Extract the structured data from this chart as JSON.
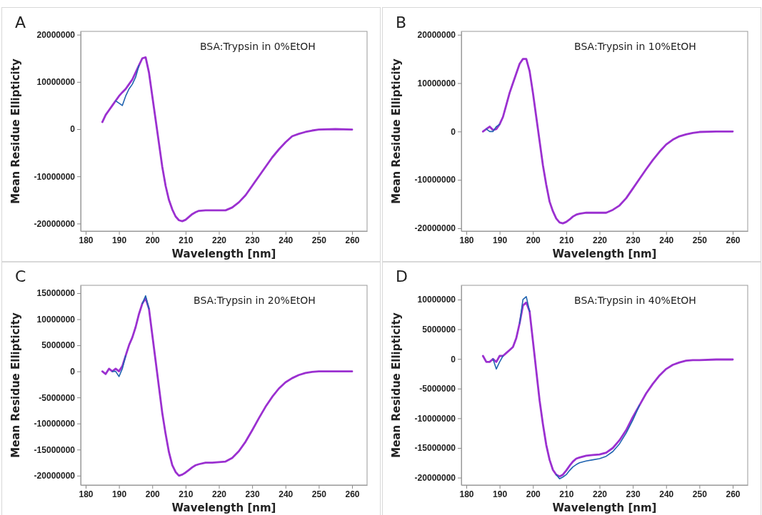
{
  "chart_data": [
    {
      "type": "line",
      "title": "A",
      "annotations": [
        "BSA:Trypsin in 0%EtOH"
      ],
      "xlabel": "Wavelength [nm]",
      "ylabel": "Mean Residue Ellipticity",
      "xlim": [
        178.5,
        264.5
      ],
      "xticks": [
        180,
        190,
        200,
        210,
        220,
        230,
        240,
        250,
        260
      ],
      "ylim": [
        -21600000,
        20700000
      ],
      "yticks": [
        -20000000,
        -10000000,
        0,
        10000000,
        20000000
      ],
      "line_style": "solid",
      "x": [
        185,
        186,
        187,
        188,
        189,
        190,
        191,
        192,
        193,
        194,
        195,
        196,
        197,
        198,
        199,
        200,
        201,
        202,
        203,
        204,
        205,
        206,
        207,
        208,
        209,
        210,
        211,
        212,
        213,
        214,
        216,
        218,
        220,
        222,
        224,
        226,
        228,
        230,
        232,
        234,
        236,
        238,
        240,
        242,
        244,
        246,
        248,
        250,
        255,
        260
      ],
      "series": [
        {
          "color": "#9b30d0",
          "values": [
            1500000,
            3000000,
            4000000,
            5000000,
            6000000,
            7000000,
            7800000,
            8500000,
            9500000,
            10500000,
            12000000,
            13500000,
            15000000,
            15200000,
            12000000,
            7000000,
            2000000,
            -3000000,
            -8000000,
            -12000000,
            -15000000,
            -17000000,
            -18500000,
            -19300000,
            -19500000,
            -19200000,
            -18600000,
            -18000000,
            -17600000,
            -17300000,
            -17200000,
            -17200000,
            -17200000,
            -17200000,
            -16600000,
            -15500000,
            -14000000,
            -12000000,
            -10000000,
            -8000000,
            -6000000,
            -4300000,
            -2800000,
            -1500000,
            -1000000,
            -600000,
            -300000,
            -100000,
            0,
            -100000
          ]
        },
        {
          "color": "#1f63b0",
          "values": [
            null,
            null,
            null,
            null,
            6000000,
            5500000,
            5000000,
            7000000,
            8500000,
            9500000,
            11000000,
            13500000,
            null,
            null,
            null,
            null,
            null,
            null,
            null,
            null,
            null,
            null,
            null,
            null,
            null,
            null,
            null,
            null,
            null,
            null,
            null,
            null,
            null,
            null,
            null,
            null,
            null,
            null,
            null,
            null,
            null,
            null,
            null,
            null,
            null,
            null,
            null,
            null,
            null,
            null
          ]
        }
      ]
    },
    {
      "type": "line",
      "title": "B",
      "annotations": [
        "BSA:Trypsin in 10%EtOH"
      ],
      "xlabel": "Wavelength [nm]",
      "ylabel": "Mean Residue Ellipticity",
      "xlim": [
        178.5,
        264.5
      ],
      "xticks": [
        180,
        190,
        200,
        210,
        220,
        230,
        240,
        250,
        260
      ],
      "ylim": [
        -20600000,
        20700000
      ],
      "yticks": [
        -20000000,
        -10000000,
        0,
        10000000,
        20000000
      ],
      "line_style": "solid",
      "x": [
        185,
        186,
        187,
        188,
        189,
        190,
        191,
        192,
        193,
        194,
        195,
        196,
        197,
        198,
        199,
        200,
        201,
        202,
        203,
        204,
        205,
        206,
        207,
        208,
        209,
        210,
        211,
        212,
        213,
        214,
        216,
        218,
        220,
        222,
        224,
        226,
        228,
        230,
        232,
        234,
        236,
        238,
        240,
        242,
        244,
        246,
        248,
        250,
        255,
        260
      ],
      "series": [
        {
          "color": "#9b30d0",
          "values": [
            0,
            500000,
            1000000,
            300000,
            500000,
            1500000,
            3000000,
            5500000,
            8000000,
            10000000,
            12000000,
            14000000,
            15000000,
            15000000,
            12500000,
            8000000,
            3000000,
            -2000000,
            -7000000,
            -11000000,
            -14500000,
            -16500000,
            -18000000,
            -18800000,
            -19000000,
            -18700000,
            -18200000,
            -17600000,
            -17200000,
            -17000000,
            -16800000,
            -16800000,
            -16800000,
            -16800000,
            -16200000,
            -15300000,
            -13800000,
            -11800000,
            -9800000,
            -7800000,
            -5900000,
            -4200000,
            -2700000,
            -1700000,
            -1000000,
            -600000,
            -300000,
            -100000,
            0,
            0
          ]
        },
        {
          "color": "#1f63b0",
          "values": [
            null,
            500000,
            0,
            0,
            1000000,
            1500000,
            null,
            null,
            null,
            null,
            null,
            null,
            null,
            null,
            null,
            null,
            null,
            null,
            null,
            null,
            null,
            null,
            null,
            null,
            null,
            null,
            null,
            null,
            null,
            null,
            null,
            null,
            null,
            null,
            null,
            null,
            null,
            null,
            null,
            null,
            null,
            null,
            null,
            null,
            null,
            null,
            null,
            null,
            null,
            null
          ]
        }
      ]
    },
    {
      "type": "line",
      "title": "C",
      "annotations": [
        "BSA:Trypsin in 20%EtOH"
      ],
      "xlabel": "Wavelength [nm]",
      "ylabel": "Mean Residue Ellipticity",
      "xlim": [
        178.5,
        264.5
      ],
      "xticks": [
        180,
        190,
        200,
        210,
        220,
        230,
        240,
        250,
        260
      ],
      "ylim": [
        -21800000,
        16500000
      ],
      "yticks": [
        -20000000,
        -15000000,
        -10000000,
        -5000000,
        0,
        5000000,
        10000000,
        15000000
      ],
      "line_style": "solid",
      "x": [
        185,
        186,
        187,
        188,
        189,
        190,
        191,
        192,
        193,
        194,
        195,
        196,
        197,
        198,
        199,
        200,
        201,
        202,
        203,
        204,
        205,
        206,
        207,
        208,
        209,
        210,
        211,
        212,
        213,
        214,
        216,
        218,
        220,
        222,
        224,
        226,
        228,
        230,
        232,
        234,
        236,
        238,
        240,
        242,
        244,
        246,
        248,
        250,
        255,
        260
      ],
      "series": [
        {
          "color": "#9b30d0",
          "values": [
            0,
            -500000,
            500000,
            0,
            500000,
            0,
            1000000,
            3000000,
            5000000,
            6500000,
            8500000,
            11000000,
            13000000,
            14000000,
            12000000,
            7000000,
            2000000,
            -3000000,
            -8000000,
            -12000000,
            -15500000,
            -18000000,
            -19300000,
            -20000000,
            -19800000,
            -19400000,
            -18900000,
            -18400000,
            -18000000,
            -17800000,
            -17500000,
            -17500000,
            -17400000,
            -17300000,
            -16600000,
            -15300000,
            -13500000,
            -11300000,
            -9000000,
            -6800000,
            -4900000,
            -3300000,
            -2100000,
            -1300000,
            -700000,
            -300000,
            -100000,
            0,
            0,
            0
          ]
        },
        {
          "color": "#1f63b0",
          "values": [
            null,
            null,
            null,
            0,
            0,
            -1000000,
            500000,
            3000000,
            null,
            null,
            null,
            null,
            13000000,
            14500000,
            12000000,
            null,
            null,
            null,
            null,
            null,
            null,
            null,
            null,
            null,
            null,
            null,
            null,
            null,
            null,
            null,
            null,
            null,
            null,
            null,
            null,
            null,
            null,
            null,
            null,
            null,
            null,
            null,
            null,
            null,
            null,
            null,
            null,
            null,
            null,
            null
          ]
        }
      ]
    },
    {
      "type": "line",
      "title": "D",
      "annotations": [
        "BSA:Trypsin in 40%EtOH"
      ],
      "xlabel": "Wavelength [nm]",
      "ylabel": "Mean Residue Ellipticity",
      "xlim": [
        178.5,
        264.5
      ],
      "xticks": [
        180,
        190,
        200,
        210,
        220,
        230,
        240,
        250,
        260
      ],
      "ylim": [
        -21250000,
        12400000
      ],
      "yticks": [
        -20000000,
        -15000000,
        -10000000,
        -5000000,
        0,
        5000000,
        10000000
      ],
      "line_style": "solid",
      "x": [
        185,
        186,
        187,
        188,
        189,
        190,
        191,
        192,
        193,
        194,
        195,
        196,
        197,
        198,
        199,
        200,
        201,
        202,
        203,
        204,
        205,
        206,
        207,
        208,
        209,
        210,
        211,
        212,
        213,
        214,
        216,
        218,
        220,
        222,
        224,
        226,
        228,
        230,
        232,
        234,
        236,
        238,
        240,
        242,
        244,
        246,
        248,
        250,
        255,
        260
      ],
      "series": [
        {
          "color": "#9b30d0",
          "values": [
            500000,
            -500000,
            -500000,
            0,
            -500000,
            500000,
            500000,
            1000000,
            1500000,
            2000000,
            3500000,
            6000000,
            9000000,
            9500000,
            8000000,
            3000000,
            -2000000,
            -7000000,
            -11000000,
            -14500000,
            -17000000,
            -18700000,
            -19500000,
            -19800000,
            -19500000,
            -18800000,
            -18000000,
            -17300000,
            -16800000,
            -16600000,
            -16300000,
            -16200000,
            -16100000,
            -15800000,
            -15000000,
            -13700000,
            -12000000,
            -9800000,
            -7800000,
            -5800000,
            -4200000,
            -2800000,
            -1700000,
            -1000000,
            -600000,
            -300000,
            -200000,
            -200000,
            -100000,
            -100000
          ]
        },
        {
          "color": "#1f63b0",
          "values": [
            null,
            null,
            null,
            0,
            -1700000,
            -500000,
            500000,
            null,
            null,
            null,
            null,
            6000000,
            10000000,
            10500000,
            8000000,
            null,
            null,
            null,
            null,
            null,
            null,
            null,
            -19500000,
            -20200000,
            -19900000,
            -19500000,
            -18800000,
            -18200000,
            -17800000,
            -17500000,
            -17200000,
            -17000000,
            -16800000,
            -16400000,
            -15600000,
            -14300000,
            -12500000,
            -10300000,
            -7800000,
            null,
            null,
            null,
            null,
            null,
            null,
            null,
            null,
            null,
            null,
            null
          ]
        }
      ]
    }
  ]
}
